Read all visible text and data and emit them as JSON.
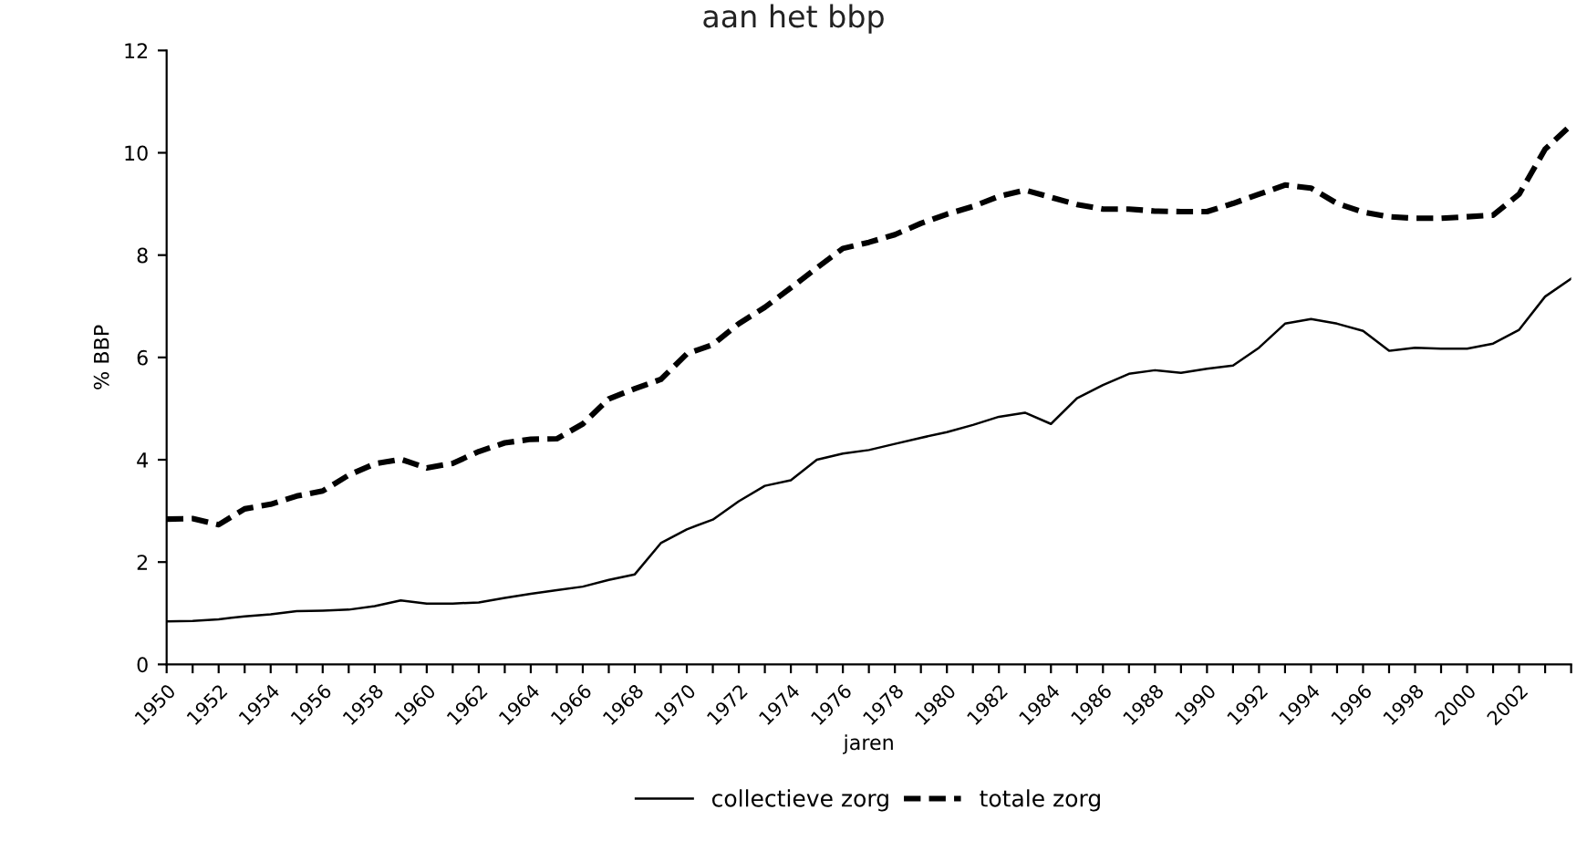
{
  "chart_data": {
    "type": "line",
    "title": "aan het bbp",
    "xlabel": "jaren",
    "ylabel": "% BBP",
    "x": [
      1950,
      1951,
      1952,
      1953,
      1954,
      1955,
      1956,
      1957,
      1958,
      1959,
      1960,
      1961,
      1962,
      1963,
      1964,
      1965,
      1966,
      1967,
      1968,
      1969,
      1970,
      1971,
      1972,
      1973,
      1974,
      1975,
      1976,
      1977,
      1978,
      1979,
      1980,
      1981,
      1982,
      1983,
      1984,
      1985,
      1986,
      1987,
      1988,
      1989,
      1990,
      1991,
      1992,
      1993,
      1994,
      1995,
      1996,
      1997,
      1998,
      1999,
      2000,
      2001,
      2002,
      2003,
      2004
    ],
    "series": [
      {
        "name": "collectieve zorg",
        "color": "#000000",
        "line_style": "solid",
        "values": [
          0.84,
          0.85,
          0.88,
          0.94,
          0.98,
          1.04,
          1.05,
          1.07,
          1.14,
          1.25,
          1.19,
          1.19,
          1.21,
          1.3,
          1.38,
          1.45,
          1.52,
          1.65,
          1.76,
          2.37,
          2.64,
          2.83,
          3.19,
          3.49,
          3.6,
          4.0,
          4.12,
          4.19,
          4.31,
          4.43,
          4.54,
          4.68,
          4.84,
          4.92,
          4.7,
          5.2,
          5.46,
          5.68,
          5.75,
          5.7,
          5.78,
          5.84,
          6.19,
          6.66,
          6.75,
          6.66,
          6.52,
          6.13,
          6.19,
          6.17,
          6.17,
          6.27,
          6.54,
          7.19,
          7.54
        ]
      },
      {
        "name": "totale zorg",
        "color": "#000000",
        "line_style": "dashed",
        "values": [
          2.84,
          2.85,
          2.73,
          3.04,
          3.13,
          3.29,
          3.39,
          3.7,
          3.92,
          4.01,
          3.84,
          3.93,
          4.16,
          4.33,
          4.4,
          4.41,
          4.7,
          5.19,
          5.39,
          5.57,
          6.07,
          6.25,
          6.66,
          6.98,
          7.36,
          7.75,
          8.13,
          8.25,
          8.4,
          8.62,
          8.8,
          8.95,
          9.15,
          9.27,
          9.13,
          8.99,
          8.9,
          8.9,
          8.86,
          8.85,
          8.85,
          9.01,
          9.19,
          9.37,
          9.31,
          9.01,
          8.84,
          8.75,
          8.72,
          8.72,
          8.75,
          8.78,
          9.19,
          10.07,
          10.54
        ]
      }
    ],
    "xlim": [
      1950,
      2004
    ],
    "ylim": [
      0,
      12
    ],
    "yticks": [
      0,
      2,
      4,
      6,
      8,
      10,
      12
    ],
    "xticks": [
      1950,
      {
        "value": 1951,
        "label": null
      },
      1952,
      {
        "value": 1953,
        "label": null
      },
      1954,
      {
        "value": 1955,
        "label": null
      },
      1956,
      {
        "value": 1957,
        "label": null
      },
      1958,
      {
        "value": 1959,
        "label": null
      },
      1960,
      {
        "value": 1961,
        "label": null
      },
      1962,
      {
        "value": 1963,
        "label": null
      },
      1964,
      {
        "value": 1965,
        "label": null
      },
      1966,
      {
        "value": 1967,
        "label": null
      },
      1968,
      {
        "value": 1969,
        "label": null
      },
      1970,
      {
        "value": 1971,
        "label": null
      },
      1972,
      {
        "value": 1973,
        "label": null
      },
      1974,
      {
        "value": 1975,
        "label": null
      },
      1976,
      {
        "value": 1977,
        "label": null
      },
      1978,
      {
        "value": 1979,
        "label": null
      },
      1980,
      {
        "value": 1981,
        "label": null
      },
      1982,
      {
        "value": 1983,
        "label": null
      },
      1984,
      {
        "value": 1985,
        "label": null
      },
      1986,
      {
        "value": 1987,
        "label": null
      },
      1988,
      {
        "value": 1989,
        "label": null
      },
      1990,
      {
        "value": 1991,
        "label": null
      },
      1992,
      {
        "value": 1993,
        "label": null
      },
      1994,
      {
        "value": 1995,
        "label": null
      },
      1996,
      {
        "value": 1997,
        "label": null
      },
      1998,
      {
        "value": 1999,
        "label": null
      },
      2000,
      {
        "value": 2001,
        "label": null
      },
      2002,
      {
        "value": 2003,
        "label": null
      },
      {
        "value": 2004,
        "label": null
      }
    ],
    "grid": false,
    "legend": "bottom"
  }
}
